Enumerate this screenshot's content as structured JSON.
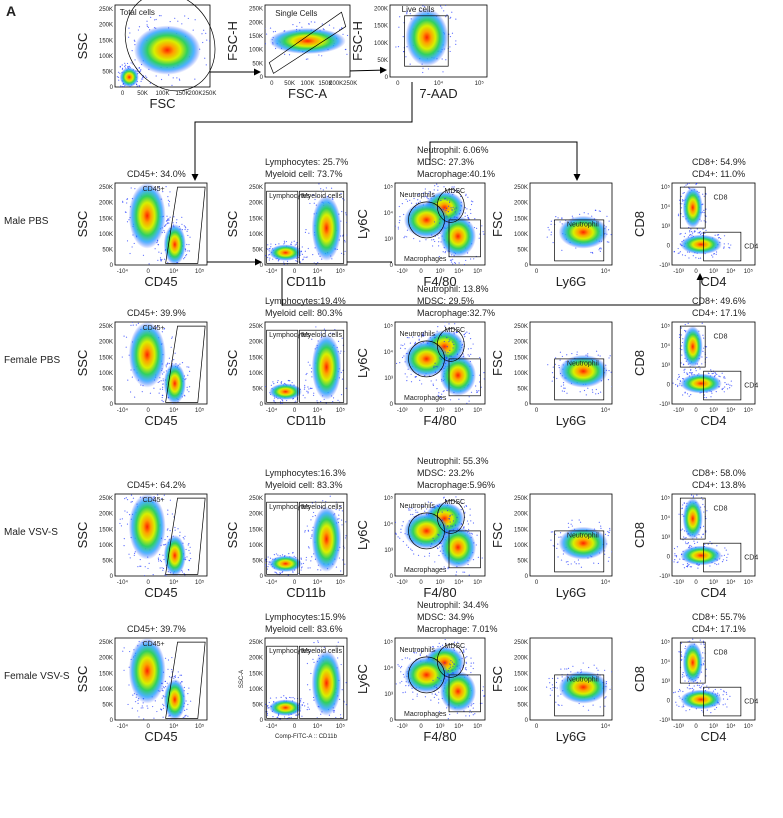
{
  "panel_label": "A",
  "gating": [
    {
      "xlabel": "FSC",
      "ylabel": "SSC",
      "gate": "Total cells",
      "xticks": [
        "0",
        "50K",
        "100K",
        "150K",
        "200K250K"
      ],
      "yticks": [
        "0",
        "50K",
        "100K",
        "150K",
        "200K",
        "250K"
      ]
    },
    {
      "xlabel": "FSC-A",
      "ylabel": "FSC-H",
      "gate": "Single Cells",
      "xticks": [
        "0",
        "50K",
        "100K",
        "150K",
        "200K250K"
      ],
      "yticks": [
        "0",
        "50K",
        "100K",
        "150K",
        "200K",
        "250K"
      ]
    },
    {
      "xlabel": "7-AAD",
      "ylabel": "FSC-H",
      "gate": "Live cells",
      "xticks": [
        "0",
        "10⁴",
        "10⁵"
      ],
      "yticks": [
        "0",
        "50K",
        "100K",
        "150K",
        "200K"
      ]
    }
  ],
  "columns": [
    {
      "xlabel": "CD45",
      "ylabel": "SSC",
      "gates": [
        "CD45+"
      ],
      "xticks": [
        "-10⁴",
        "0",
        "10⁴",
        "10⁵"
      ],
      "yticks": [
        "0",
        "50K",
        "100K",
        "150K",
        "200K",
        "250K"
      ]
    },
    {
      "xlabel": "CD11b",
      "ylabel": "SSC",
      "gates": [
        "Lymphocytes",
        "Myeloid cells"
      ],
      "xticks": [
        "-10⁴",
        "0",
        "10⁴",
        "10⁵"
      ],
      "yticks": [
        "0",
        "50K",
        "100K",
        "150K",
        "200K",
        "250K"
      ]
    },
    {
      "xlabel": "F4/80",
      "ylabel": "Ly6C",
      "gates": [
        "Neutrophils",
        "MDSC",
        "Macrophages"
      ],
      "xticks": [
        "-10³",
        "0",
        "10³",
        "10⁴",
        "10⁵"
      ],
      "yticks": [
        "0",
        "10³",
        "10⁴",
        "10⁵"
      ]
    },
    {
      "xlabel": "Ly6G",
      "ylabel": "FSC",
      "gates": [
        "Neutrophil"
      ],
      "xticks": [
        "0",
        "10⁴"
      ],
      "yticks": [
        "0",
        "50K",
        "100K",
        "150K",
        "200K",
        "250K"
      ]
    },
    {
      "xlabel": "CD4",
      "ylabel": "CD8",
      "gates": [
        "CD8",
        "CD4"
      ],
      "xticks": [
        "-10³",
        "0",
        "10³",
        "10⁴",
        "10⁵"
      ],
      "yticks": [
        "-10³",
        "0",
        "10³",
        "10⁴",
        "10⁵"
      ]
    }
  ],
  "rows": [
    {
      "label": "Male PBS",
      "stats": [
        [
          "CD45+: 34.0%"
        ],
        [
          "Lymphocytes: 25.7%",
          "Myeloid cell: 73.7%"
        ],
        [
          "Neutrophil: 6.06%",
          "MDSC: 27.3%",
          "Macrophage:40.1%"
        ],
        [],
        [
          "CD8+: 54.9%",
          "CD4+: 11.0%"
        ]
      ]
    },
    {
      "label": "Female PBS",
      "stats": [
        [
          "CD45+: 39.9%"
        ],
        [
          "Lymphocytes:19.4%",
          "Myeloid cell: 80.3%"
        ],
        [
          "Neutrophil: 13.8%",
          "MDSC: 29.5%",
          "Macrophage:32.7%"
        ],
        [],
        [
          "CD8+: 49.6%",
          "CD4+: 17.1%"
        ]
      ]
    },
    {
      "label": "Male VSV-S",
      "stats": [
        [
          "CD45+: 64.2%"
        ],
        [
          "Lymphocytes:16.3%",
          "Myeloid cell: 83.3%"
        ],
        [
          "Neutrophil: 55.3%",
          "MDSC: 23.2%",
          "Macrophage:5.96%"
        ],
        [],
        [
          "CD8+: 58.0%",
          "CD4+: 13.8%"
        ]
      ]
    },
    {
      "label": "Female VSV-S",
      "stats": [
        [
          "CD45+: 39.7%"
        ],
        [
          "Lymphocytes:15.9%",
          "Myeloid cell: 83.6%"
        ],
        [
          "Neutrophil: 34.4%",
          "MDSC: 34.9%",
          "Macrophage: 7.01%"
        ],
        [],
        [
          "CD8+: 55.7%",
          "CD4+: 17.1%"
        ]
      ],
      "axis_override": {
        "1": {
          "xlabel": "Comp-FITC-A :: CD11b",
          "ylabel": "SSC-A"
        }
      }
    }
  ]
}
